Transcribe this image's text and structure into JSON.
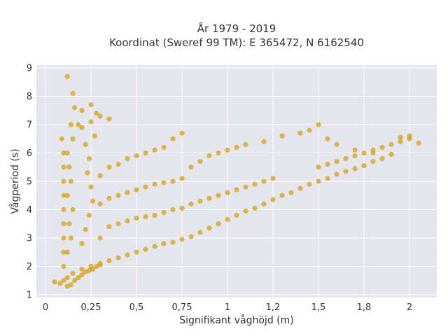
{
  "chart_data": {
    "type": "scatter",
    "title_lines": [
      "År 1979 - 2019",
      "Koordinat (Sweref 99 TM): E 365472, N 6162540"
    ],
    "xlabel": "Signifikant våghöjd (m)",
    "ylabel": "Vågperiod (s)",
    "xlim": [
      -0.05,
      2.15
    ],
    "ylim": [
      0.9,
      9.1
    ],
    "x_ticks": [
      0,
      0.25,
      0.5,
      0.75,
      1,
      1.25,
      1.5,
      1.75,
      2
    ],
    "x_tick_labels": [
      "0",
      "0,25",
      "0,5",
      "0,75",
      "1",
      "1,2",
      "1,5",
      "1,8",
      "2"
    ],
    "y_ticks": [
      1,
      2,
      3,
      4,
      5,
      6,
      7,
      8,
      9
    ],
    "y_tick_labels": [
      "1",
      "2",
      "3",
      "4",
      "5",
      "6",
      "7",
      "8",
      "9"
    ],
    "grid": true,
    "legend": false,
    "colors": {
      "marker": "#d4a520",
      "plot_background": "#e5e5ee",
      "grid": "#ffffff"
    },
    "series": [
      {
        "points": [
          [
            0.05,
            1.45
          ],
          [
            0.08,
            1.4
          ],
          [
            0.1,
            1.5
          ],
          [
            0.12,
            1.6
          ],
          [
            0.15,
            1.75
          ],
          [
            0.2,
            1.9
          ],
          [
            0.25,
            2.0
          ],
          [
            0.3,
            2.1
          ],
          [
            0.35,
            2.2
          ],
          [
            0.4,
            2.3
          ],
          [
            0.45,
            2.4
          ],
          [
            0.5,
            2.5
          ],
          [
            0.55,
            2.6
          ],
          [
            0.6,
            2.7
          ],
          [
            0.65,
            2.8
          ],
          [
            0.7,
            2.85
          ],
          [
            0.75,
            2.95
          ],
          [
            0.8,
            3.05
          ],
          [
            0.85,
            3.2
          ],
          [
            0.9,
            3.35
          ],
          [
            0.95,
            3.5
          ],
          [
            1.0,
            3.65
          ],
          [
            1.05,
            3.8
          ],
          [
            1.1,
            3.95
          ],
          [
            1.15,
            4.05
          ],
          [
            1.2,
            4.2
          ],
          [
            1.25,
            4.35
          ],
          [
            1.3,
            4.5
          ],
          [
            1.35,
            4.6
          ],
          [
            1.4,
            4.75
          ],
          [
            1.45,
            4.9
          ],
          [
            1.5,
            5.0
          ],
          [
            1.55,
            5.1
          ],
          [
            1.6,
            5.25
          ],
          [
            1.65,
            5.35
          ],
          [
            1.7,
            5.45
          ],
          [
            1.75,
            5.55
          ],
          [
            1.8,
            5.7
          ],
          [
            1.85,
            5.8
          ],
          [
            1.9,
            5.95
          ],
          [
            0.12,
            2.5
          ],
          [
            0.14,
            3.0
          ],
          [
            0.13,
            3.5
          ],
          [
            0.15,
            4.0
          ],
          [
            0.12,
            4.5
          ],
          [
            0.14,
            5.0
          ],
          [
            0.13,
            5.5
          ],
          [
            0.12,
            6.0
          ],
          [
            0.15,
            6.5
          ],
          [
            0.14,
            7.0
          ],
          [
            0.2,
            2.8
          ],
          [
            0.22,
            3.3
          ],
          [
            0.24,
            3.8
          ],
          [
            0.26,
            4.3
          ],
          [
            0.25,
            4.8
          ],
          [
            0.23,
            5.3
          ],
          [
            0.24,
            5.8
          ],
          [
            0.22,
            6.3
          ],
          [
            0.27,
            6.6
          ],
          [
            0.25,
            7.1
          ],
          [
            0.3,
            3.0
          ],
          [
            0.35,
            3.4
          ],
          [
            0.4,
            3.5
          ],
          [
            0.45,
            3.6
          ],
          [
            0.5,
            3.7
          ],
          [
            0.55,
            3.75
          ],
          [
            0.6,
            3.8
          ],
          [
            0.65,
            3.9
          ],
          [
            0.7,
            4.0
          ],
          [
            0.75,
            4.05
          ],
          [
            0.3,
            4.2
          ],
          [
            0.35,
            4.4
          ],
          [
            0.4,
            4.5
          ],
          [
            0.45,
            4.6
          ],
          [
            0.5,
            4.7
          ],
          [
            0.55,
            4.8
          ],
          [
            0.6,
            4.9
          ],
          [
            0.65,
            4.95
          ],
          [
            0.7,
            5.0
          ],
          [
            0.75,
            5.1
          ],
          [
            0.3,
            5.2
          ],
          [
            0.35,
            5.5
          ],
          [
            0.4,
            5.6
          ],
          [
            0.45,
            5.8
          ],
          [
            0.5,
            5.9
          ],
          [
            0.55,
            6.0
          ],
          [
            0.6,
            6.1
          ],
          [
            0.65,
            6.2
          ],
          [
            0.7,
            6.5
          ],
          [
            0.75,
            6.7
          ],
          [
            0.8,
            4.2
          ],
          [
            0.85,
            4.3
          ],
          [
            0.9,
            4.4
          ],
          [
            0.95,
            4.5
          ],
          [
            1.0,
            4.6
          ],
          [
            1.05,
            4.7
          ],
          [
            1.1,
            4.8
          ],
          [
            1.15,
            4.9
          ],
          [
            1.2,
            5.0
          ],
          [
            1.25,
            5.1
          ],
          [
            0.8,
            5.5
          ],
          [
            0.85,
            5.7
          ],
          [
            0.9,
            5.9
          ],
          [
            0.95,
            6.0
          ],
          [
            1.0,
            6.1
          ],
          [
            1.05,
            6.2
          ],
          [
            1.1,
            6.3
          ],
          [
            1.2,
            6.4
          ],
          [
            1.3,
            6.6
          ],
          [
            1.4,
            6.7
          ],
          [
            1.5,
            5.5
          ],
          [
            1.55,
            5.6
          ],
          [
            1.6,
            5.7
          ],
          [
            1.65,
            5.8
          ],
          [
            1.7,
            5.9
          ],
          [
            1.75,
            6.0
          ],
          [
            1.8,
            6.1
          ],
          [
            1.85,
            6.2
          ],
          [
            1.9,
            6.3
          ],
          [
            1.95,
            6.4
          ],
          [
            2.0,
            6.5
          ],
          [
            2.05,
            6.35
          ],
          [
            1.95,
            6.55
          ],
          [
            2.0,
            6.6
          ],
          [
            1.8,
            6.0
          ],
          [
            1.7,
            6.1
          ],
          [
            1.6,
            6.3
          ],
          [
            1.55,
            6.5
          ],
          [
            1.5,
            7.0
          ],
          [
            1.45,
            6.8
          ],
          [
            0.2,
            7.5
          ],
          [
            0.25,
            7.7
          ],
          [
            0.3,
            7.3
          ],
          [
            0.35,
            7.2
          ],
          [
            0.18,
            7.0
          ],
          [
            0.16,
            7.6
          ],
          [
            0.2,
            6.9
          ],
          [
            0.28,
            7.4
          ],
          [
            0.12,
            8.7
          ],
          [
            0.15,
            8.1
          ],
          [
            0.1,
            2.0
          ],
          [
            0.1,
            2.5
          ],
          [
            0.1,
            3.0
          ],
          [
            0.1,
            3.5
          ],
          [
            0.1,
            4.0
          ],
          [
            0.1,
            4.5
          ],
          [
            0.1,
            5.0
          ],
          [
            0.1,
            5.5
          ],
          [
            0.1,
            6.0
          ],
          [
            0.09,
            6.5
          ],
          [
            0.12,
            1.3
          ],
          [
            0.14,
            1.35
          ],
          [
            0.16,
            1.5
          ],
          [
            0.18,
            1.6
          ],
          [
            0.2,
            1.7
          ],
          [
            0.22,
            1.8
          ],
          [
            0.24,
            1.85
          ],
          [
            0.26,
            1.9
          ],
          [
            0.28,
            2.0
          ],
          [
            0.3,
            2.05
          ]
        ]
      }
    ]
  }
}
